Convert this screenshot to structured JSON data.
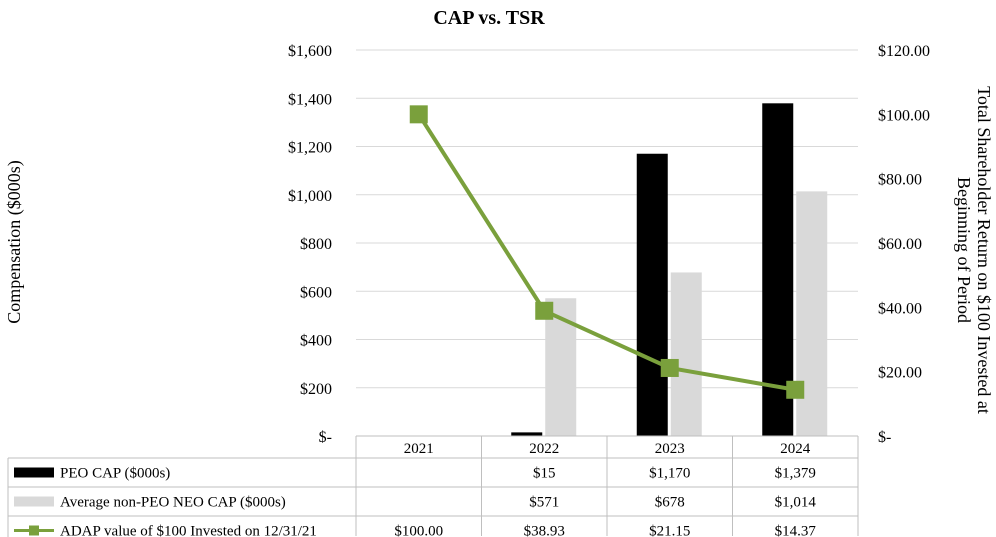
{
  "chart_data": {
    "type": "bar",
    "title": "CAP vs. TSR",
    "categories": [
      "2021",
      "2022",
      "2023",
      "2024"
    ],
    "ylabel": "Compensation ($000s)",
    "ylabel_right": [
      "Total Shareholder Return on $100 Invested at",
      "Beginning of Period"
    ],
    "ylim": [
      0,
      1600
    ],
    "ylim_right": [
      0,
      120
    ],
    "yticks": [
      0,
      200,
      400,
      600,
      800,
      1000,
      1200,
      1400,
      1600
    ],
    "ytick_labels": [
      "$-",
      "$200",
      "$400",
      "$600",
      "$800",
      "$1,000",
      "$1,200",
      "$1,400",
      "$1,600"
    ],
    "yticks_right": [
      0,
      20,
      40,
      60,
      80,
      100,
      120
    ],
    "ytick_labels_right": [
      "$-",
      "$20.00",
      "$40.00",
      "$60.00",
      "$80.00",
      "$100.00",
      "$120.00"
    ],
    "grid": true,
    "legend": "data-table",
    "series": [
      {
        "name": "PEO CAP ($000s)",
        "type": "bar",
        "axis": "left",
        "color": "#000000",
        "values": [
          null,
          15,
          1170,
          1379
        ],
        "labels": [
          "",
          "$15",
          "$1,170",
          "$1,379"
        ]
      },
      {
        "name": "Average non-PEO NEO CAP ($000s)",
        "type": "bar",
        "axis": "left",
        "color": "#d9d9d9",
        "values": [
          null,
          571,
          678,
          1014
        ],
        "labels": [
          "",
          "$571",
          "$678",
          "$1,014"
        ]
      },
      {
        "name": "ADAP value of $100 Invested on 12/31/21",
        "type": "line",
        "axis": "right",
        "color": "#7aa03c",
        "values": [
          100.0,
          38.93,
          21.15,
          14.37
        ],
        "labels": [
          "$100.00",
          "$38.93",
          "$21.15",
          "$14.37"
        ]
      }
    ]
  }
}
